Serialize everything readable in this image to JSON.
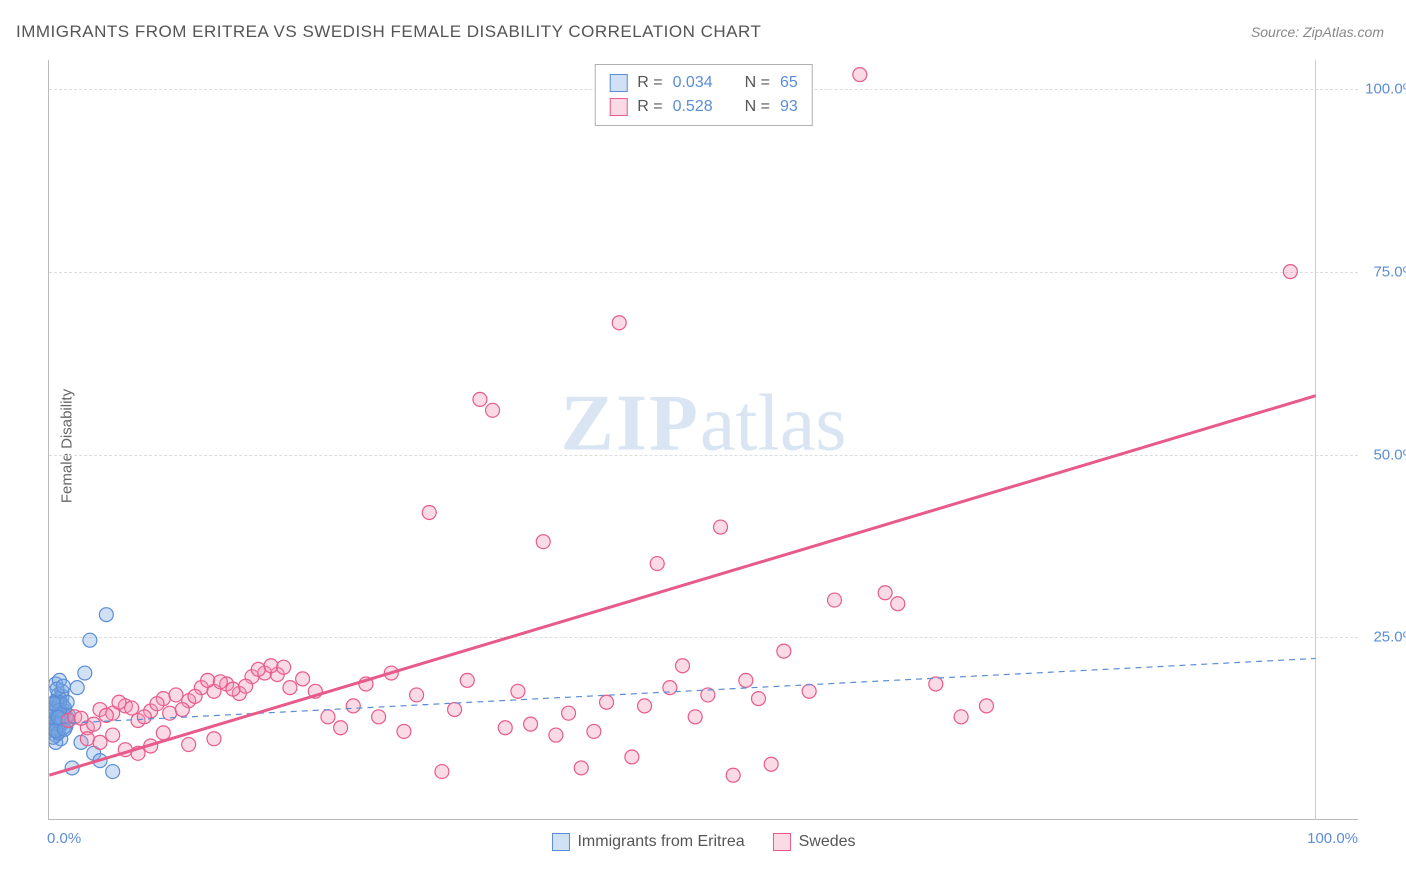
{
  "title": "IMMIGRANTS FROM ERITREA VS SWEDISH FEMALE DISABILITY CORRELATION CHART",
  "source": "Source: ZipAtlas.com",
  "ylabel": "Female Disability",
  "watermark_zip": "ZIP",
  "watermark_atlas": "atlas",
  "chart": {
    "type": "scatter",
    "xlim": [
      0,
      100
    ],
    "ylim": [
      0,
      104
    ],
    "x_ticks": [
      {
        "pos": 0,
        "label": "0.0%"
      },
      {
        "pos": 100,
        "label": "100.0%"
      }
    ],
    "y_ticks": [
      {
        "pos": 25,
        "label": "25.0%"
      },
      {
        "pos": 50,
        "label": "50.0%"
      },
      {
        "pos": 75,
        "label": "75.0%"
      },
      {
        "pos": 100,
        "label": "100.0%"
      }
    ],
    "background_color": "#ffffff",
    "grid_color": "#dddddd",
    "axis_color": "#bbbbbb",
    "tick_label_color": "#5b8dd6",
    "marker_radius": 7,
    "marker_stroke_width": 1.2,
    "trend_line_width_pink": 3,
    "trend_line_width_blue": 1.2,
    "trend_dash_blue": "6,5",
    "series": [
      {
        "id": "eritrea",
        "label": "Immigrants from Eritrea",
        "fill": "rgba(120,170,225,0.35)",
        "stroke": "#5b8dd6",
        "r_label": "R =",
        "r_value": "0.034",
        "n_label": "N =",
        "n_value": "65",
        "trend": {
          "x1": 0,
          "y1": 13,
          "x2": 100,
          "y2": 22,
          "stroke": "#5b8dd6",
          "dashed": true
        },
        "points": [
          [
            0.2,
            13.5
          ],
          [
            0.4,
            12.8
          ],
          [
            0.3,
            14.2
          ],
          [
            0.6,
            13.0
          ],
          [
            0.5,
            11.5
          ],
          [
            0.8,
            14.5
          ],
          [
            0.3,
            15.0
          ],
          [
            1.0,
            13.2
          ],
          [
            0.7,
            12.0
          ],
          [
            1.2,
            14.8
          ],
          [
            0.4,
            16.0
          ],
          [
            0.9,
            11.0
          ],
          [
            1.5,
            13.5
          ],
          [
            0.6,
            15.5
          ],
          [
            1.1,
            12.5
          ],
          [
            0.8,
            16.5
          ],
          [
            0.5,
            10.5
          ],
          [
            1.3,
            14.0
          ],
          [
            0.3,
            12.2
          ],
          [
            0.7,
            17.0
          ],
          [
            1.0,
            15.8
          ],
          [
            0.4,
            13.8
          ],
          [
            0.9,
            14.6
          ],
          [
            0.6,
            12.6
          ],
          [
            1.4,
            13.9
          ],
          [
            0.5,
            14.9
          ],
          [
            0.8,
            13.4
          ],
          [
            0.3,
            11.2
          ],
          [
            1.2,
            15.2
          ],
          [
            0.7,
            14.1
          ],
          [
            0.4,
            12.4
          ],
          [
            1.0,
            16.8
          ],
          [
            0.6,
            13.6
          ],
          [
            0.9,
            12.9
          ],
          [
            0.5,
            15.7
          ],
          [
            1.1,
            14.4
          ],
          [
            0.3,
            13.1
          ],
          [
            0.8,
            15.9
          ],
          [
            0.7,
            11.8
          ],
          [
            1.3,
            12.7
          ],
          [
            0.4,
            14.7
          ],
          [
            0.9,
            13.3
          ],
          [
            0.6,
            16.2
          ],
          [
            1.5,
            14.2
          ],
          [
            0.5,
            12.1
          ],
          [
            1.0,
            13.7
          ],
          [
            0.8,
            14.9
          ],
          [
            0.3,
            15.8
          ],
          [
            1.2,
            12.3
          ],
          [
            0.7,
            13.9
          ],
          [
            4.5,
            28.0
          ],
          [
            3.2,
            24.5
          ],
          [
            2.8,
            20.0
          ],
          [
            2.2,
            18.0
          ],
          [
            5.0,
            6.5
          ],
          [
            3.5,
            9.0
          ],
          [
            1.8,
            7.0
          ],
          [
            2.5,
            10.5
          ],
          [
            4.0,
            8.0
          ],
          [
            0.5,
            18.5
          ],
          [
            1.0,
            17.5
          ],
          [
            0.8,
            19.0
          ],
          [
            1.4,
            16.0
          ],
          [
            0.6,
            17.8
          ],
          [
            1.1,
            18.2
          ]
        ]
      },
      {
        "id": "swedes",
        "label": "Swedes",
        "fill": "rgba(240,150,180,0.35)",
        "stroke": "#e85a8a",
        "r_label": "R =",
        "r_value": "0.528",
        "n_label": "N =",
        "n_value": "93",
        "trend": {
          "x1": 0,
          "y1": 6,
          "x2": 100,
          "y2": 58,
          "stroke": "#e85a8a",
          "dashed": false
        },
        "points": [
          [
            1.5,
            13.5
          ],
          [
            2.0,
            14.0
          ],
          [
            3.0,
            12.5
          ],
          [
            4.0,
            15.0
          ],
          [
            2.5,
            13.8
          ],
          [
            5.0,
            14.5
          ],
          [
            3.5,
            13.0
          ],
          [
            6.0,
            15.5
          ],
          [
            4.5,
            14.2
          ],
          [
            7.0,
            13.5
          ],
          [
            5.5,
            16.0
          ],
          [
            8.0,
            14.8
          ],
          [
            6.5,
            15.2
          ],
          [
            9.0,
            16.5
          ],
          [
            7.5,
            14.0
          ],
          [
            10.0,
            17.0
          ],
          [
            8.5,
            15.8
          ],
          [
            11.0,
            16.2
          ],
          [
            9.5,
            14.5
          ],
          [
            12.0,
            18.0
          ],
          [
            10.5,
            15.0
          ],
          [
            13.0,
            17.5
          ],
          [
            11.5,
            16.8
          ],
          [
            14.0,
            18.5
          ],
          [
            12.5,
            19.0
          ],
          [
            15.0,
            17.2
          ],
          [
            13.5,
            18.8
          ],
          [
            16.0,
            19.5
          ],
          [
            14.5,
            17.8
          ],
          [
            17.0,
            20.0
          ],
          [
            15.5,
            18.2
          ],
          [
            18.0,
            19.8
          ],
          [
            16.5,
            20.5
          ],
          [
            19.0,
            18.0
          ],
          [
            17.5,
            21.0
          ],
          [
            20.0,
            19.2
          ],
          [
            18.5,
            20.8
          ],
          [
            21.0,
            17.5
          ],
          [
            22.0,
            14.0
          ],
          [
            23.0,
            12.5
          ],
          [
            24.0,
            15.5
          ],
          [
            25.0,
            18.5
          ],
          [
            26.0,
            14.0
          ],
          [
            27.0,
            20.0
          ],
          [
            28.0,
            12.0
          ],
          [
            29.0,
            17.0
          ],
          [
            30.0,
            42.0
          ],
          [
            31.0,
            6.5
          ],
          [
            32.0,
            15.0
          ],
          [
            33.0,
            19.0
          ],
          [
            34.0,
            57.5
          ],
          [
            35.0,
            56.0
          ],
          [
            36.0,
            12.5
          ],
          [
            37.0,
            17.5
          ],
          [
            38.0,
            13.0
          ],
          [
            39.0,
            38.0
          ],
          [
            40.0,
            11.5
          ],
          [
            41.0,
            14.5
          ],
          [
            42.0,
            7.0
          ],
          [
            43.0,
            12.0
          ],
          [
            44.0,
            16.0
          ],
          [
            45.0,
            68.0
          ],
          [
            46.0,
            8.5
          ],
          [
            47.0,
            15.5
          ],
          [
            48.0,
            35.0
          ],
          [
            49.0,
            18.0
          ],
          [
            50.0,
            21.0
          ],
          [
            51.0,
            14.0
          ],
          [
            52.0,
            17.0
          ],
          [
            53.0,
            40.0
          ],
          [
            54.0,
            6.0
          ],
          [
            55.0,
            19.0
          ],
          [
            56.0,
            16.5
          ],
          [
            58.0,
            23.0
          ],
          [
            57.0,
            7.5
          ],
          [
            60.0,
            17.5
          ],
          [
            62.0,
            30.0
          ],
          [
            64.0,
            102.0
          ],
          [
            66.0,
            31.0
          ],
          [
            67.0,
            29.5
          ],
          [
            70.0,
            18.5
          ],
          [
            72.0,
            14.0
          ],
          [
            74.0,
            15.5
          ],
          [
            98.0,
            75.0
          ],
          [
            3.0,
            11.0
          ],
          [
            4.0,
            10.5
          ],
          [
            6.0,
            9.5
          ],
          [
            8.0,
            10.0
          ],
          [
            5.0,
            11.5
          ],
          [
            7.0,
            9.0
          ],
          [
            9.0,
            11.8
          ],
          [
            11.0,
            10.2
          ],
          [
            13.0,
            11.0
          ]
        ]
      }
    ]
  }
}
